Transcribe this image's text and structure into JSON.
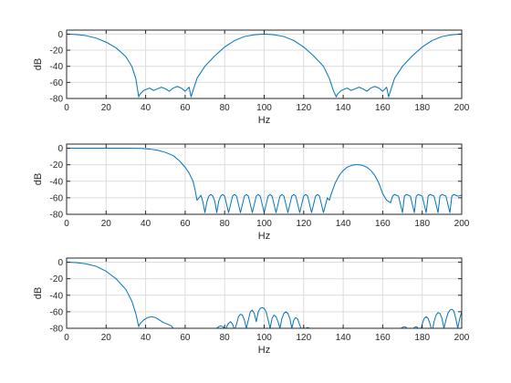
{
  "chart_data": [
    {
      "type": "line",
      "xlabel": "Hz",
      "ylabel": "dB",
      "xlim": [
        0,
        200
      ],
      "ylim": [
        -80,
        5
      ],
      "xticks": [
        0,
        20,
        40,
        60,
        80,
        100,
        120,
        140,
        160,
        180,
        200
      ],
      "xtick_labels": [
        "0",
        "20",
        "40",
        "60",
        "80",
        "100",
        "120",
        "140",
        "160",
        "180",
        "200"
      ],
      "yticks": [
        -80,
        -60,
        -40,
        -20,
        0
      ],
      "ytick_labels": [
        "-80",
        "-60",
        "-40",
        "-20",
        "0"
      ],
      "grid": true,
      "series": [
        {
          "color": "#0072BD",
          "x": [
            0,
            5,
            10,
            15,
            20,
            25,
            30,
            33,
            35,
            36.5,
            37,
            39,
            42,
            44,
            46,
            48,
            50,
            52,
            54,
            56,
            58,
            60,
            62,
            63,
            64,
            66,
            70,
            75,
            80,
            85,
            90,
            95,
            100,
            105,
            110,
            115,
            120,
            125,
            130,
            133,
            135,
            136.5,
            137,
            139,
            142,
            144,
            146,
            148,
            150,
            152,
            154,
            156,
            158,
            160,
            162,
            163,
            164,
            166,
            170,
            175,
            180,
            185,
            190,
            195,
            200
          ],
          "y": [
            0,
            -0.5,
            -2,
            -5,
            -10,
            -17,
            -28,
            -40,
            -55,
            -78,
            -75,
            -70,
            -67,
            -70,
            -68,
            -66,
            -68,
            -71,
            -67,
            -65,
            -67,
            -71,
            -66,
            -78,
            -70,
            -55,
            -40,
            -27,
            -16,
            -8,
            -3,
            -0.8,
            0,
            -0.8,
            -3,
            -8,
            -16,
            -27,
            -40,
            -55,
            -70,
            -78,
            -75,
            -70,
            -67,
            -70,
            -68,
            -66,
            -68,
            -71,
            -67,
            -65,
            -67,
            -71,
            -66,
            -78,
            -70,
            -55,
            -40,
            -27,
            -16,
            -8,
            -3,
            -0.8,
            0
          ]
        }
      ]
    },
    {
      "type": "line",
      "xlabel": "Hz",
      "ylabel": "dB",
      "xlim": [
        0,
        200
      ],
      "ylim": [
        -80,
        5
      ],
      "xticks": [
        0,
        20,
        40,
        60,
        80,
        100,
        120,
        140,
        160,
        180,
        200
      ],
      "xtick_labels": [
        "0",
        "20",
        "40",
        "60",
        "80",
        "100",
        "120",
        "140",
        "160",
        "180",
        "200"
      ],
      "yticks": [
        -80,
        -60,
        -40,
        -20,
        0
      ],
      "ytick_labels": [
        "-80",
        "-60",
        "-40",
        "-20",
        "0"
      ],
      "grid": true,
      "series": [
        {
          "color": "#0072BD",
          "x": [
            0,
            10,
            20,
            30,
            38,
            42,
            46,
            50,
            54,
            57,
            60,
            62,
            64,
            65,
            66,
            67,
            68,
            69,
            70,
            71,
            72,
            73,
            74,
            75,
            76,
            77,
            78,
            79,
            80,
            82,
            84,
            85,
            86,
            88,
            90,
            91,
            92,
            94,
            96,
            97,
            98,
            100,
            102,
            103,
            104,
            106,
            108,
            109,
            110,
            112,
            114,
            115,
            116,
            118,
            120,
            121,
            122,
            124,
            126,
            127,
            128,
            130,
            132,
            133,
            134,
            136,
            138,
            140,
            142,
            144,
            146,
            148,
            150,
            152,
            154,
            156,
            158,
            160,
            162,
            164,
            165,
            166,
            168,
            170,
            171,
            172,
            174,
            176,
            177,
            178,
            180,
            182,
            183,
            184,
            186,
            188,
            189,
            190,
            192,
            194,
            195,
            196,
            198,
            200
          ],
          "y": [
            0,
            0,
            0,
            0,
            -0.3,
            -1,
            -2.5,
            -5,
            -9,
            -15,
            -23,
            -30,
            -40,
            -50,
            -63,
            -60,
            -57,
            -65,
            -78,
            -65,
            -58,
            -56,
            -58,
            -64,
            -78,
            -64,
            -58,
            -56,
            -58,
            -78,
            -58,
            -56,
            -58,
            -78,
            -58,
            -56,
            -58,
            -78,
            -58,
            -56,
            -58,
            -78,
            -58,
            -56,
            -58,
            -78,
            -58,
            -56,
            -58,
            -78,
            -58,
            -56,
            -58,
            -78,
            -58,
            -56,
            -58,
            -78,
            -58,
            -56,
            -58,
            -78,
            -60,
            -63,
            -55,
            -42,
            -33,
            -27,
            -23,
            -21,
            -20,
            -20,
            -21,
            -23,
            -27,
            -33,
            -42,
            -55,
            -63,
            -66,
            -58,
            -56,
            -58,
            -78,
            -58,
            -56,
            -58,
            -78,
            -58,
            -56,
            -58,
            -78,
            -58,
            -56,
            -58,
            -78,
            -58,
            -56,
            -58,
            -78,
            -58,
            -56,
            -58,
            -57
          ]
        }
      ]
    },
    {
      "type": "line",
      "xlabel": "Hz",
      "ylabel": "dB",
      "xlim": [
        0,
        200
      ],
      "ylim": [
        -80,
        5
      ],
      "xticks": [
        0,
        20,
        40,
        60,
        80,
        100,
        120,
        140,
        160,
        180,
        200
      ],
      "xtick_labels": [
        "0",
        "20",
        "40",
        "60",
        "80",
        "100",
        "120",
        "140",
        "160",
        "180",
        "200"
      ],
      "yticks": [
        -80,
        -60,
        -40,
        -20,
        0
      ],
      "ytick_labels": [
        "-80",
        "-60",
        "-40",
        "-20",
        "0"
      ],
      "grid": true,
      "series": [
        {
          "color": "#0072BD",
          "x": [
            0,
            5,
            10,
            15,
            20,
            25,
            30,
            33,
            35,
            36.5,
            37,
            39,
            41,
            43,
            45,
            47,
            49,
            51,
            53,
            54,
            55,
            60,
            65,
            70,
            75,
            76,
            77,
            78,
            79,
            80,
            80.5,
            81,
            82,
            83,
            84,
            85,
            86,
            87,
            88,
            89,
            90,
            91,
            92,
            93,
            94,
            95,
            96,
            97,
            98,
            99,
            100,
            101,
            102,
            103,
            104,
            105,
            106,
            107,
            108,
            109,
            110,
            111,
            112,
            113,
            114,
            115,
            116,
            117,
            118,
            119,
            120,
            120.5,
            121,
            122,
            123,
            124,
            125,
            126,
            130,
            140,
            150,
            160,
            165,
            170,
            171,
            172,
            173,
            174,
            175,
            176,
            177,
            178,
            179,
            180,
            181,
            182,
            183,
            184,
            185,
            186,
            187,
            188,
            189,
            190,
            191,
            192,
            193,
            194,
            195,
            196,
            197,
            198,
            199,
            200
          ],
          "y": [
            0,
            -0.5,
            -2,
            -5,
            -11,
            -20,
            -33,
            -47,
            -62,
            -78,
            -75,
            -70,
            -67,
            -66,
            -67,
            -70,
            -73,
            -75,
            -77,
            -80,
            -85,
            -90,
            -90,
            -90,
            -85,
            -80,
            -78,
            -77,
            -78,
            -80,
            -85,
            -78,
            -74,
            -72,
            -75,
            -82,
            -75,
            -66,
            -63,
            -64,
            -70,
            -80,
            -70,
            -60,
            -58,
            -62,
            -72,
            -60,
            -56,
            -55,
            -56,
            -60,
            -70,
            -80,
            -68,
            -64,
            -66,
            -72,
            -80,
            -68,
            -62,
            -60,
            -62,
            -68,
            -80,
            -70,
            -67,
            -69,
            -76,
            -82,
            -79,
            -85,
            -80,
            -79,
            -80,
            -84,
            -90,
            -90,
            -90,
            -90,
            -90,
            -90,
            -85,
            -79,
            -78,
            -79,
            -83,
            -86,
            -82,
            -79,
            -78,
            -80,
            -85,
            -75,
            -68,
            -66,
            -68,
            -75,
            -84,
            -72,
            -64,
            -61,
            -62,
            -68,
            -80,
            -70,
            -62,
            -58,
            -57,
            -59,
            -68,
            -80,
            -68,
            -60
          ]
        }
      ]
    }
  ]
}
